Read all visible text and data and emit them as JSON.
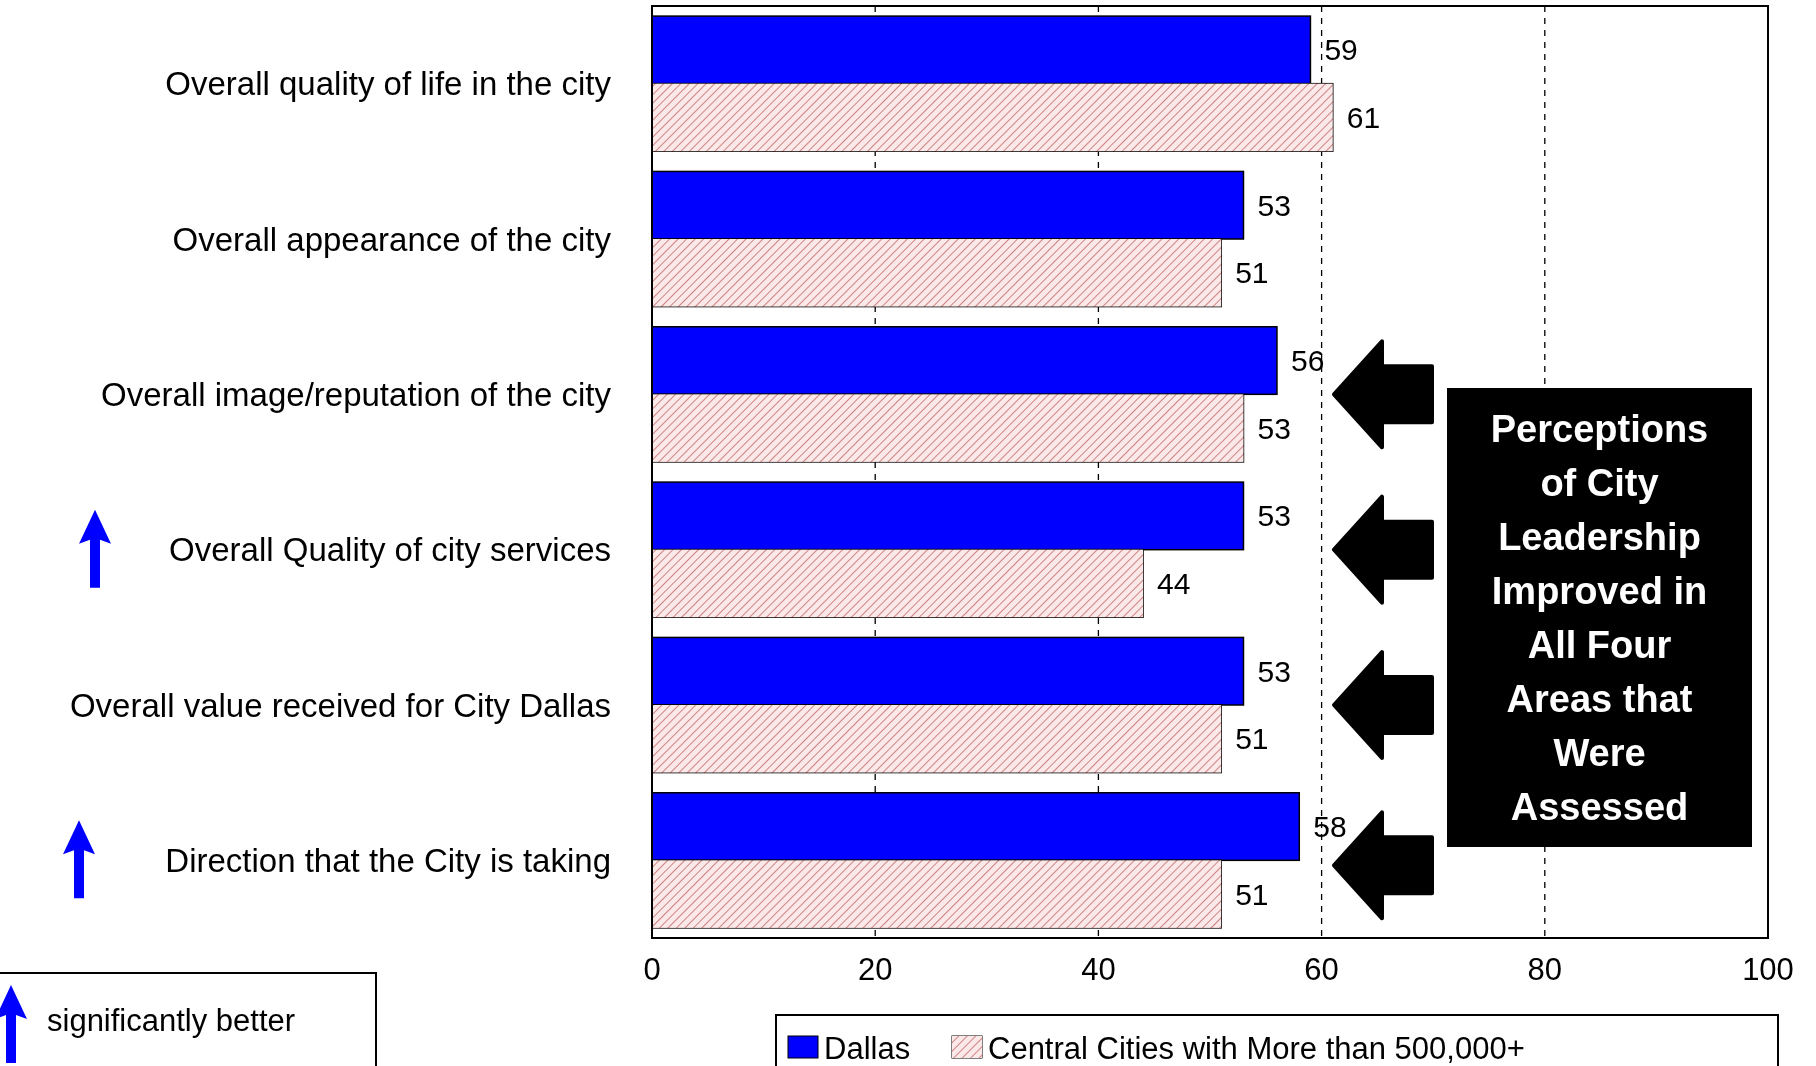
{
  "chart_data": {
    "type": "bar",
    "orientation": "horizontal",
    "categories": [
      "Overall quality of life in the city",
      "Overall appearance of the city",
      "Overall image/reputation of the city",
      "Overall Quality of city services",
      "Overall value received for City Dallas",
      "Direction that the City is taking"
    ],
    "series": [
      {
        "name": "Dallas",
        "color": "#0000ff",
        "values": [
          59,
          53,
          56,
          53,
          53,
          58
        ]
      },
      {
        "name": "Central Cities with More than 500,000+",
        "color": "#e8b0b0",
        "values": [
          61,
          51,
          53,
          44,
          51,
          51
        ]
      }
    ],
    "xlim": [
      0,
      100
    ],
    "xticks": [
      0,
      20,
      40,
      60,
      80,
      100
    ],
    "grid": "x",
    "legend": "bottom",
    "data_labels": true,
    "annotations": [
      "Perceptions of City Leadership Improved in All Four Areas that Were Assessed",
      "significantly better"
    ]
  }
}
